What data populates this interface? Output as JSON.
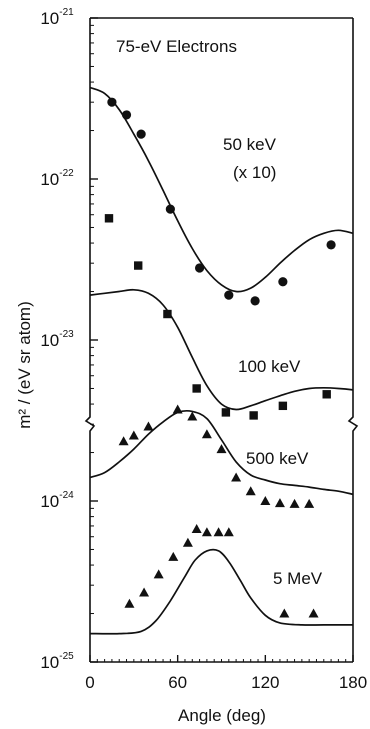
{
  "chart_data": {
    "type": "scatter",
    "title": "75-eV Electrons",
    "xlabel": "Angle (deg)",
    "ylabel": "m² / (eV sr atom)",
    "y_scale": "log",
    "y_axis_break": "between 100 keV and 500 keV",
    "xlim": [
      0,
      180
    ],
    "ylim": [
      1e-25,
      1e-21
    ],
    "x_ticks": [
      "0",
      "60",
      "120",
      "180"
    ],
    "y_ticks": [
      {
        "base": "10",
        "exp": "-21"
      },
      {
        "base": "10",
        "exp": "-22"
      },
      {
        "base": "10",
        "exp": "-23"
      },
      {
        "base": "10",
        "exp": "-24"
      },
      {
        "base": "10",
        "exp": "-25"
      }
    ],
    "grid": false,
    "series": [
      {
        "name": "50 keV",
        "label_lines": [
          "50 keV",
          "(x 10)"
        ],
        "marker": "circle",
        "points": [
          {
            "x": 15,
            "y": 3e-22
          },
          {
            "x": 25,
            "y": 2.5e-22
          },
          {
            "x": 35,
            "y": 1.9e-22
          },
          {
            "x": 55,
            "y": 6.5e-23
          },
          {
            "x": 75,
            "y": 2.8e-23
          },
          {
            "x": 95,
            "y": 1.9e-23
          },
          {
            "x": 113,
            "y": 1.75e-23
          },
          {
            "x": 132,
            "y": 2.3e-23
          },
          {
            "x": 165,
            "y": 3.9e-23
          }
        ],
        "curve": [
          {
            "x": 0,
            "y": 3.7e-22
          },
          {
            "x": 10,
            "y": 3.4e-22
          },
          {
            "x": 20,
            "y": 2.7e-22
          },
          {
            "x": 30,
            "y": 1.9e-22
          },
          {
            "x": 40,
            "y": 1.3e-22
          },
          {
            "x": 50,
            "y": 8.5e-23
          },
          {
            "x": 60,
            "y": 5.5e-23
          },
          {
            "x": 70,
            "y": 3.7e-23
          },
          {
            "x": 80,
            "y": 2.7e-23
          },
          {
            "x": 90,
            "y": 2.2e-23
          },
          {
            "x": 100,
            "y": 2e-23
          },
          {
            "x": 110,
            "y": 2.1e-23
          },
          {
            "x": 120,
            "y": 2.45e-23
          },
          {
            "x": 130,
            "y": 3e-23
          },
          {
            "x": 140,
            "y": 3.6e-23
          },
          {
            "x": 150,
            "y": 4.2e-23
          },
          {
            "x": 160,
            "y": 4.6e-23
          },
          {
            "x": 170,
            "y": 4.8e-23
          },
          {
            "x": 180,
            "y": 4.6e-23
          }
        ]
      },
      {
        "name": "100 keV",
        "label_lines": [
          "100 keV"
        ],
        "marker": "square",
        "points": [
          {
            "x": 13,
            "y": 5.7e-23
          },
          {
            "x": 33,
            "y": 2.9e-23
          },
          {
            "x": 53,
            "y": 1.45e-23
          },
          {
            "x": 73,
            "y": 5e-24
          },
          {
            "x": 93,
            "y": 3.55e-24
          },
          {
            "x": 112,
            "y": 3.4e-24
          },
          {
            "x": 132,
            "y": 3.9e-24
          },
          {
            "x": 162,
            "y": 4.6e-24
          }
        ],
        "curve": [
          {
            "x": 0,
            "y": 1.9e-23
          },
          {
            "x": 10,
            "y": 1.95e-23
          },
          {
            "x": 20,
            "y": 2e-23
          },
          {
            "x": 30,
            "y": 2.05e-23
          },
          {
            "x": 40,
            "y": 1.95e-23
          },
          {
            "x": 50,
            "y": 1.65e-23
          },
          {
            "x": 60,
            "y": 1.2e-23
          },
          {
            "x": 70,
            "y": 7.8e-24
          },
          {
            "x": 80,
            "y": 5.2e-24
          },
          {
            "x": 90,
            "y": 4e-24
          },
          {
            "x": 100,
            "y": 3.7e-24
          },
          {
            "x": 110,
            "y": 3.9e-24
          },
          {
            "x": 120,
            "y": 4.2e-24
          },
          {
            "x": 130,
            "y": 4.5e-24
          },
          {
            "x": 140,
            "y": 4.8e-24
          },
          {
            "x": 150,
            "y": 5e-24
          },
          {
            "x": 160,
            "y": 5.05e-24
          },
          {
            "x": 170,
            "y": 5e-24
          },
          {
            "x": 180,
            "y": 4.9e-24
          }
        ]
      },
      {
        "name": "500 keV",
        "label_lines": [
          "500 keV"
        ],
        "marker": "triangle",
        "points": [
          {
            "x": 23,
            "y": 2.35e-24
          },
          {
            "x": 30,
            "y": 2.55e-24
          },
          {
            "x": 40,
            "y": 2.9e-24
          },
          {
            "x": 60,
            "y": 3.7e-24
          },
          {
            "x": 70,
            "y": 3.35e-24
          },
          {
            "x": 80,
            "y": 2.6e-24
          },
          {
            "x": 90,
            "y": 2.1e-24
          },
          {
            "x": 100,
            "y": 1.4e-24
          },
          {
            "x": 110,
            "y": 1.15e-24
          },
          {
            "x": 120,
            "y": 1e-24
          },
          {
            "x": 130,
            "y": 9.7e-25
          },
          {
            "x": 140,
            "y": 9.6e-25
          },
          {
            "x": 150,
            "y": 9.6e-25
          }
        ],
        "curve": [
          {
            "x": 0,
            "y": 1.4e-24
          },
          {
            "x": 10,
            "y": 1.5e-24
          },
          {
            "x": 20,
            "y": 1.75e-24
          },
          {
            "x": 30,
            "y": 2.1e-24
          },
          {
            "x": 40,
            "y": 2.6e-24
          },
          {
            "x": 50,
            "y": 3.1e-24
          },
          {
            "x": 60,
            "y": 3.55e-24
          },
          {
            "x": 70,
            "y": 3.6e-24
          },
          {
            "x": 80,
            "y": 3.25e-24
          },
          {
            "x": 90,
            "y": 2.4e-24
          },
          {
            "x": 100,
            "y": 1.75e-24
          },
          {
            "x": 110,
            "y": 1.45e-24
          },
          {
            "x": 120,
            "y": 1.35e-24
          },
          {
            "x": 130,
            "y": 1.28e-24
          },
          {
            "x": 140,
            "y": 1.25e-24
          },
          {
            "x": 150,
            "y": 1.22e-24
          },
          {
            "x": 160,
            "y": 1.18e-24
          },
          {
            "x": 170,
            "y": 1.15e-24
          },
          {
            "x": 180,
            "y": 1.1e-24
          }
        ]
      },
      {
        "name": "5 MeV",
        "label_lines": [
          "5 MeV"
        ],
        "marker": "triangle",
        "points": [
          {
            "x": 27,
            "y": 2.3e-25
          },
          {
            "x": 37,
            "y": 2.7e-25
          },
          {
            "x": 47,
            "y": 3.5e-25
          },
          {
            "x": 57,
            "y": 4.5e-25
          },
          {
            "x": 67,
            "y": 5.5e-25
          },
          {
            "x": 73,
            "y": 6.7e-25
          },
          {
            "x": 80,
            "y": 6.4e-25
          },
          {
            "x": 88,
            "y": 6.4e-25
          },
          {
            "x": 95,
            "y": 6.4e-25
          },
          {
            "x": 133,
            "y": 2e-25
          },
          {
            "x": 153,
            "y": 2e-25
          }
        ],
        "curve": [
          {
            "x": 0,
            "y": 1.5e-25
          },
          {
            "x": 20,
            "y": 1.5e-25
          },
          {
            "x": 35,
            "y": 1.55e-25
          },
          {
            "x": 45,
            "y": 1.8e-25
          },
          {
            "x": 55,
            "y": 2.4e-25
          },
          {
            "x": 65,
            "y": 3.4e-25
          },
          {
            "x": 72,
            "y": 4.3e-25
          },
          {
            "x": 80,
            "y": 4.9e-25
          },
          {
            "x": 88,
            "y": 4.9e-25
          },
          {
            "x": 95,
            "y": 4.2e-25
          },
          {
            "x": 103,
            "y": 3.2e-25
          },
          {
            "x": 110,
            "y": 2.5e-25
          },
          {
            "x": 120,
            "y": 1.95e-25
          },
          {
            "x": 130,
            "y": 1.75e-25
          },
          {
            "x": 145,
            "y": 1.7e-25
          },
          {
            "x": 160,
            "y": 1.7e-25
          },
          {
            "x": 180,
            "y": 1.7e-25
          }
        ]
      }
    ]
  }
}
